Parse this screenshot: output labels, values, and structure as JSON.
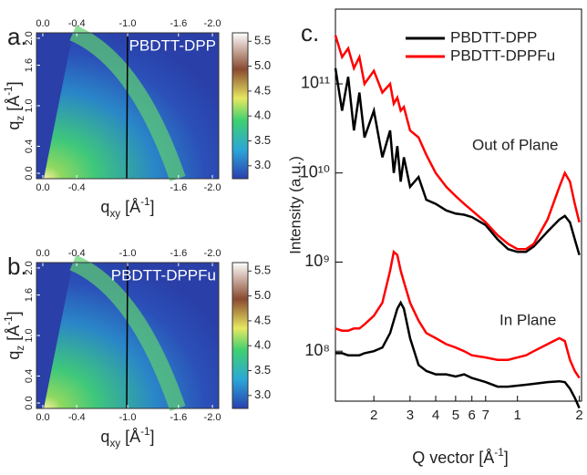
{
  "chart_data": [
    {
      "type": "heatmap",
      "panel_label": "a.",
      "sample": "PBDTT-DPP",
      "xlabel": [
        "q",
        "xy",
        " [Å",
        "-1",
        "]"
      ],
      "ylabel": [
        "q",
        "z",
        " [Å",
        "-1",
        "]"
      ],
      "xlim": [
        0.075,
        -2.075
      ],
      "ylim": [
        -0.08,
        2.08
      ],
      "xticks_top": [
        {
          "value": 0,
          "label": "0.0"
        },
        -0.4,
        {
          "value": -1,
          "label": "-1.0"
        },
        -1.6,
        {
          "value": -2,
          "label": "-2.0"
        }
      ],
      "xticks": [
        {
          "value": 0,
          "label": "0.0"
        },
        -0.4,
        -1.6,
        {
          "value": -2,
          "label": "-2.0"
        }
      ],
      "yticks": [
        {
          "value": 0,
          "label": "0.0"
        },
        0.4,
        {
          "value": 1,
          "label": "1.0"
        },
        1.6,
        {
          "value": 2,
          "label": "2.0"
        }
      ],
      "clim": [
        2.74,
        5.67
      ],
      "cticks": [
        5.5,
        {
          "value": 5,
          "label": "5.0"
        },
        4.5,
        {
          "value": 4,
          "label": "4.0"
        },
        3.5,
        {
          "value": 3,
          "label": "3.0"
        }
      ]
    },
    {
      "type": "heatmap",
      "panel_label": "b.",
      "sample": "PBDTT-DPPFu",
      "xlabel": [
        "q",
        "xy",
        " [Å",
        "-1",
        "]"
      ],
      "ylabel": [
        "q",
        "z",
        " [Å",
        "-1",
        "]"
      ],
      "xlim": [
        0.075,
        -2.075
      ],
      "ylim": [
        -0.08,
        2.08
      ],
      "xticks_top": [
        {
          "value": 0,
          "label": "0.0"
        },
        -0.4,
        {
          "value": -1,
          "label": "-1.0"
        },
        -1.6,
        {
          "value": -2,
          "label": "-2.0"
        }
      ],
      "xticks": [
        {
          "value": 0,
          "label": "0.0"
        },
        -0.4,
        {
          "value": -1,
          "label": "-1.0"
        },
        -1.6,
        {
          "value": -2,
          "label": "-2.0"
        }
      ],
      "yticks": [
        {
          "value": 0,
          "label": "0.0"
        },
        0.4,
        {
          "value": 1,
          "label": "1.0"
        },
        1.6,
        {
          "value": 2,
          "label": "2.0"
        }
      ],
      "clim": [
        2.74,
        5.67
      ],
      "cticks": [
        5.5,
        {
          "value": 5,
          "label": "5.0"
        },
        4.5,
        {
          "value": 4,
          "label": "4.0"
        },
        3.5,
        {
          "value": 3,
          "label": "3.0"
        }
      ]
    },
    {
      "type": "line",
      "panel_label": "c.",
      "xlabel": [
        "Q vector [Å",
        "-1",
        "]"
      ],
      "ylabel": "Intensity (a.u.)",
      "log_x": true,
      "log_y": true,
      "xlim": [
        0.13,
        2.05
      ],
      "ylim": [
        27500000,
        690000000000
      ],
      "xticks": [
        {
          "value": 0.2,
          "label": "2"
        },
        {
          "value": 0.3,
          "label": "3"
        },
        {
          "value": 0.4,
          "label": "4"
        },
        {
          "value": 0.5,
          "label": "5"
        },
        {
          "value": 0.6,
          "label": "6"
        },
        {
          "value": 0.7,
          "label": "7"
        },
        1,
        2
      ],
      "yticks": [
        {
          "value": 100000000,
          "label": "10⁸"
        },
        {
          "value": 1000000000,
          "label": "10⁹"
        },
        {
          "value": 10000000000,
          "label": "10¹⁰"
        },
        {
          "value": 100000000000,
          "label": "10¹¹"
        }
      ],
      "annotations": [
        "Out of Plane",
        "In Plane"
      ],
      "x": [
        0.13,
        0.14,
        0.15,
        0.16,
        0.17,
        0.18,
        0.2,
        0.22,
        0.24,
        0.25,
        0.26,
        0.27,
        0.28,
        0.3,
        0.33,
        0.36,
        0.4,
        0.45,
        0.5,
        0.55,
        0.6,
        0.7,
        0.8,
        0.9,
        1.0,
        1.1,
        1.2,
        1.4,
        1.6,
        1.7,
        1.8,
        1.9,
        2.0
      ],
      "series": [
        {
          "name": "PBDTT-DPP",
          "color": "#000000",
          "out_of_plane": [
            150000000000,
            50000000000,
            120000000000,
            30000000000,
            80000000000,
            25000000000,
            50000000000,
            15000000000,
            30000000000,
            10000000000,
            20000000000,
            8000000000,
            15000000000,
            7000000000,
            9000000000,
            5000000000,
            4500000000,
            3800000000,
            3500000000,
            3400000000,
            3200000000,
            2600000000,
            1800000000,
            1400000000,
            1300000000,
            1300000000,
            1500000000,
            2200000000,
            3000000000,
            3300000000,
            2800000000,
            1800000000,
            1200000000
          ],
          "in_plane": [
            95000000,
            95000000,
            90000000,
            90000000,
            90000000,
            95000000,
            100000000,
            110000000,
            160000000,
            220000000,
            300000000,
            350000000,
            300000000,
            140000000,
            70000000,
            60000000,
            55000000,
            55000000,
            52000000,
            55000000,
            50000000,
            45000000,
            40000000,
            40000000,
            41000000,
            42000000,
            43000000,
            45000000,
            46000000,
            45000000,
            38000000,
            30000000,
            23000000
          ]
        },
        {
          "name": "PBDTT-DPPFu",
          "color": "#ff0000",
          "out_of_plane": [
            350000000000,
            200000000000,
            250000000000,
            150000000000,
            200000000000,
            100000000000,
            140000000000,
            80000000000,
            100000000000,
            60000000000,
            70000000000,
            50000000000,
            55000000000,
            30000000000,
            25000000000,
            16000000000,
            10000000000,
            7000000000,
            5500000000,
            4500000000,
            3800000000,
            2800000000,
            2000000000,
            1600000000,
            1400000000,
            1400000000,
            1600000000,
            3000000000,
            7000000000,
            10000000000,
            8000000000,
            4500000000,
            2800000000
          ],
          "in_plane": [
            180000000,
            170000000,
            170000000,
            180000000,
            180000000,
            200000000,
            250000000,
            350000000,
            800000000,
            1300000000,
            1200000000,
            800000000,
            600000000,
            350000000,
            220000000,
            160000000,
            140000000,
            120000000,
            110000000,
            100000000,
            90000000,
            85000000,
            80000000,
            80000000,
            85000000,
            90000000,
            100000000,
            120000000,
            140000000,
            130000000,
            80000000,
            60000000,
            50000000
          ]
        }
      ]
    }
  ]
}
